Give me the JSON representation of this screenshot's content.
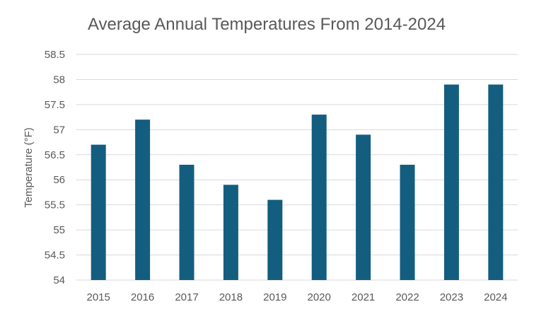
{
  "chart_data": {
    "type": "bar",
    "title": "Average Annual Temperatures From 2014-2024",
    "xlabel": "",
    "ylabel": "Temperature (°F)",
    "categories": [
      "2015",
      "2016",
      "2017",
      "2018",
      "2019",
      "2020",
      "2021",
      "2022",
      "2023",
      "2024"
    ],
    "values": [
      56.7,
      57.2,
      56.3,
      55.9,
      55.6,
      57.3,
      56.9,
      56.3,
      57.9,
      57.9
    ],
    "ylim": [
      54,
      58.5
    ],
    "yticks": [
      "54",
      "54.5",
      "55",
      "55.5",
      "56",
      "56.5",
      "57",
      "57.5",
      "58",
      "58.5"
    ],
    "grid": true,
    "legend": "none",
    "colors": {
      "bar": "#135e7f"
    }
  }
}
